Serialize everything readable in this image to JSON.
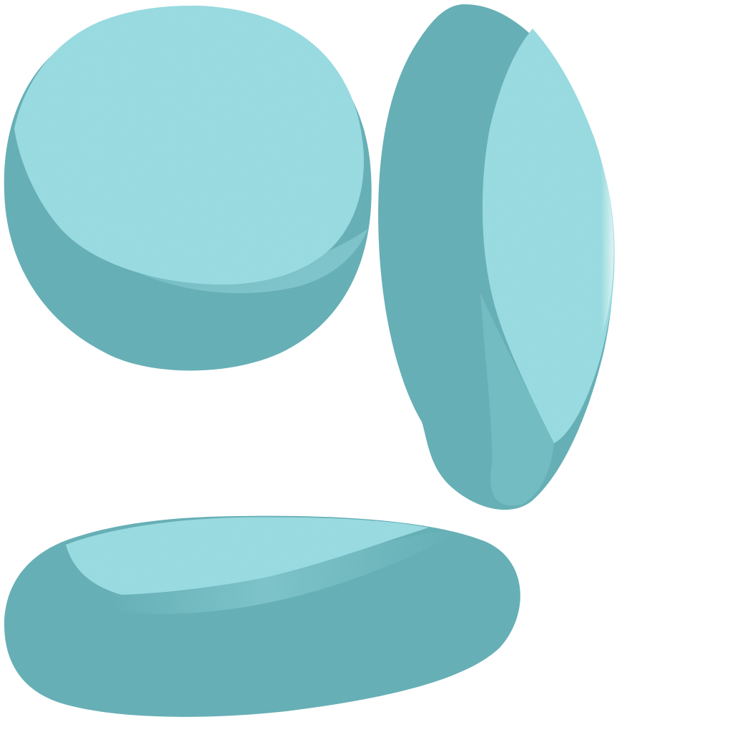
{
  "colors": {
    "background": "#ffffff",
    "shadow": "#62afb6",
    "highlight": "#97dce1",
    "mid": "#7cc6cc"
  },
  "shapes": [
    {
      "name": "round-pebble",
      "description_icon": "pebble-icon"
    },
    {
      "name": "tall-pebble",
      "description_icon": "pebble-icon"
    },
    {
      "name": "flat-pebble",
      "description_icon": "pebble-icon"
    }
  ]
}
